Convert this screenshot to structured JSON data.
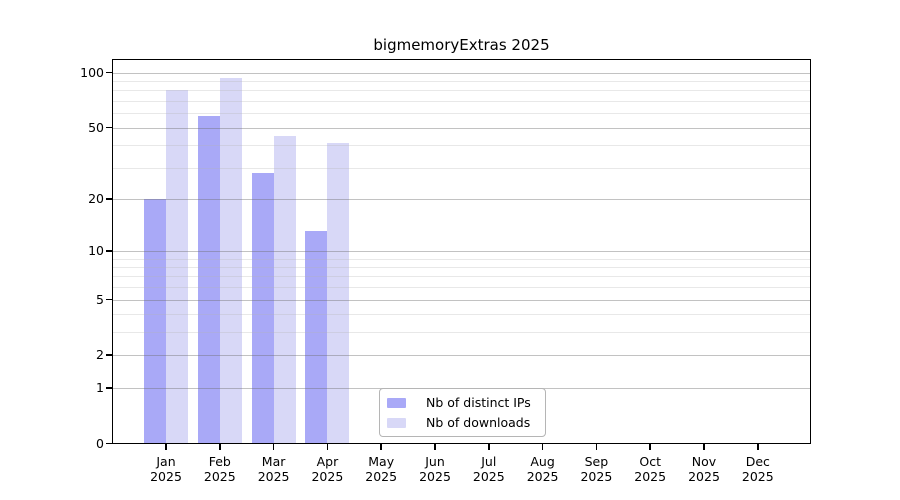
{
  "chart_data": {
    "type": "bar",
    "title": "bigmemoryExtras 2025",
    "y_scale": "log1p",
    "y_axis_ticks": [
      0,
      1,
      2,
      5,
      10,
      20,
      50,
      100
    ],
    "y_minor_gridlines": [
      3,
      4,
      6,
      7,
      8,
      9,
      30,
      40,
      60,
      70,
      80,
      90
    ],
    "ylim": [
      0,
      120
    ],
    "grid": true,
    "categories": [
      "Jan",
      "Feb",
      "Mar",
      "Apr",
      "May",
      "Jun",
      "Jul",
      "Aug",
      "Sep",
      "Oct",
      "Nov",
      "Dec"
    ],
    "year_label": "2025",
    "series": [
      {
        "name": "Nb of distinct IPs",
        "color": "#a9a9f7",
        "values": [
          20,
          58,
          28,
          13,
          null,
          null,
          null,
          null,
          null,
          null,
          null,
          null
        ]
      },
      {
        "name": "Nb of downloads",
        "color": "#d8d8f7",
        "values": [
          80,
          94,
          45,
          41,
          null,
          null,
          null,
          null,
          null,
          null,
          null,
          null
        ]
      }
    ],
    "legend_position": "bottom-center-inside",
    "colors": {
      "axis": "#000000",
      "major_grid": "#c6c6c6",
      "minor_grid": "#ebebeb",
      "background": "#ffffff"
    }
  }
}
